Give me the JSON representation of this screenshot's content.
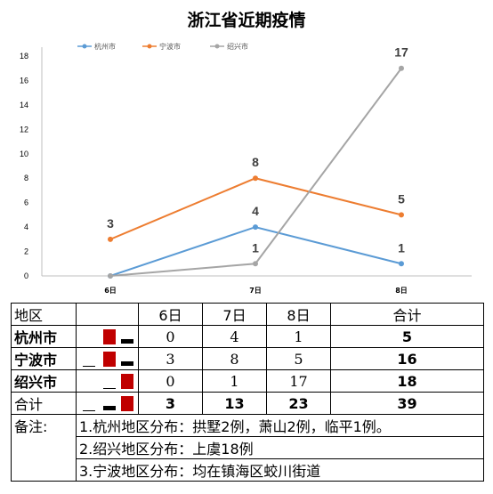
{
  "chart_data": {
    "type": "line",
    "title": "浙江省近期疫情",
    "categories": [
      "6日",
      "7日",
      "8日"
    ],
    "series": [
      {
        "name": "杭州市",
        "values": [
          0,
          4,
          1
        ],
        "color": "#5b9bd5",
        "labels": [
          "",
          "4",
          "1"
        ]
      },
      {
        "name": "宁波市",
        "values": [
          3,
          8,
          5
        ],
        "color": "#ed7d31",
        "labels": [
          "3",
          "8",
          "5"
        ]
      },
      {
        "name": "绍兴市",
        "values": [
          0,
          1,
          17
        ],
        "color": "#a5a5a5",
        "labels": [
          "",
          "1",
          "17"
        ]
      }
    ],
    "ylim": [
      0,
      18
    ],
    "yticks": [
      0,
      2,
      4,
      6,
      8,
      10,
      12,
      14,
      16,
      18
    ],
    "legend_position": "top",
    "grid": false
  },
  "table": {
    "headers": [
      "地区",
      "",
      "6日",
      "7日",
      "8日",
      "合计"
    ],
    "rows": [
      {
        "region": "杭州市",
        "d6": "0",
        "d7": "4",
        "d8": "1",
        "total": "5"
      },
      {
        "region": "宁波市",
        "d6": "3",
        "d7": "8",
        "d8": "5",
        "total": "16"
      },
      {
        "region": "绍兴市",
        "d6": "0",
        "d7": "1",
        "d8": "17",
        "total": "18"
      },
      {
        "region": "合计",
        "d6": "3",
        "d7": "13",
        "d8": "23",
        "total": "39"
      }
    ],
    "notes_label": "备注:",
    "notes": [
      "1.杭州地区分布：拱墅2例，萧山2例，临平1例。",
      "2.绍兴地区分布：上虞18例",
      "3.宁波地区分布：均在镇海区蛟川街道"
    ]
  }
}
